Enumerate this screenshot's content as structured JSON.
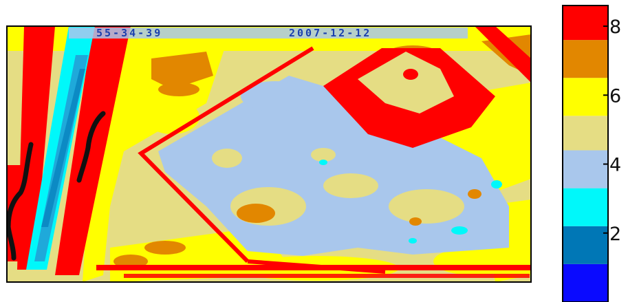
{
  "colors": {
    "bg": "#ffffff",
    "frame": "#000000",
    "pen_stroke": "#111111",
    "banner_text": "#1a3fae"
  },
  "map_banner": {
    "left": "55-34-39",
    "right": "2007-12-12"
  },
  "chart_data": {
    "type": "heatmap",
    "title": "",
    "xlabel": "",
    "ylabel": "",
    "colorbar": {
      "range": [
        0,
        8.6
      ],
      "ticks": [
        "2",
        "4",
        "6",
        "8"
      ],
      "tick_values": [
        2,
        4,
        6,
        8
      ],
      "bands": [
        {
          "from": 0.0,
          "to": 1.1,
          "color": "#0a0aff"
        },
        {
          "from": 1.1,
          "to": 2.2,
          "color": "#0077b6"
        },
        {
          "from": 2.2,
          "to": 3.3,
          "color": "#00f8fa"
        },
        {
          "from": 3.3,
          "to": 4.4,
          "color": "#a9c7ec"
        },
        {
          "from": 4.4,
          "to": 5.4,
          "color": "#e5dd84"
        },
        {
          "from": 5.4,
          "to": 6.5,
          "color": "#ffff00"
        },
        {
          "from": 6.5,
          "to": 7.6,
          "color": "#e28700"
        },
        {
          "from": 7.6,
          "to": 8.6,
          "color": "#ff0000"
        }
      ]
    }
  }
}
